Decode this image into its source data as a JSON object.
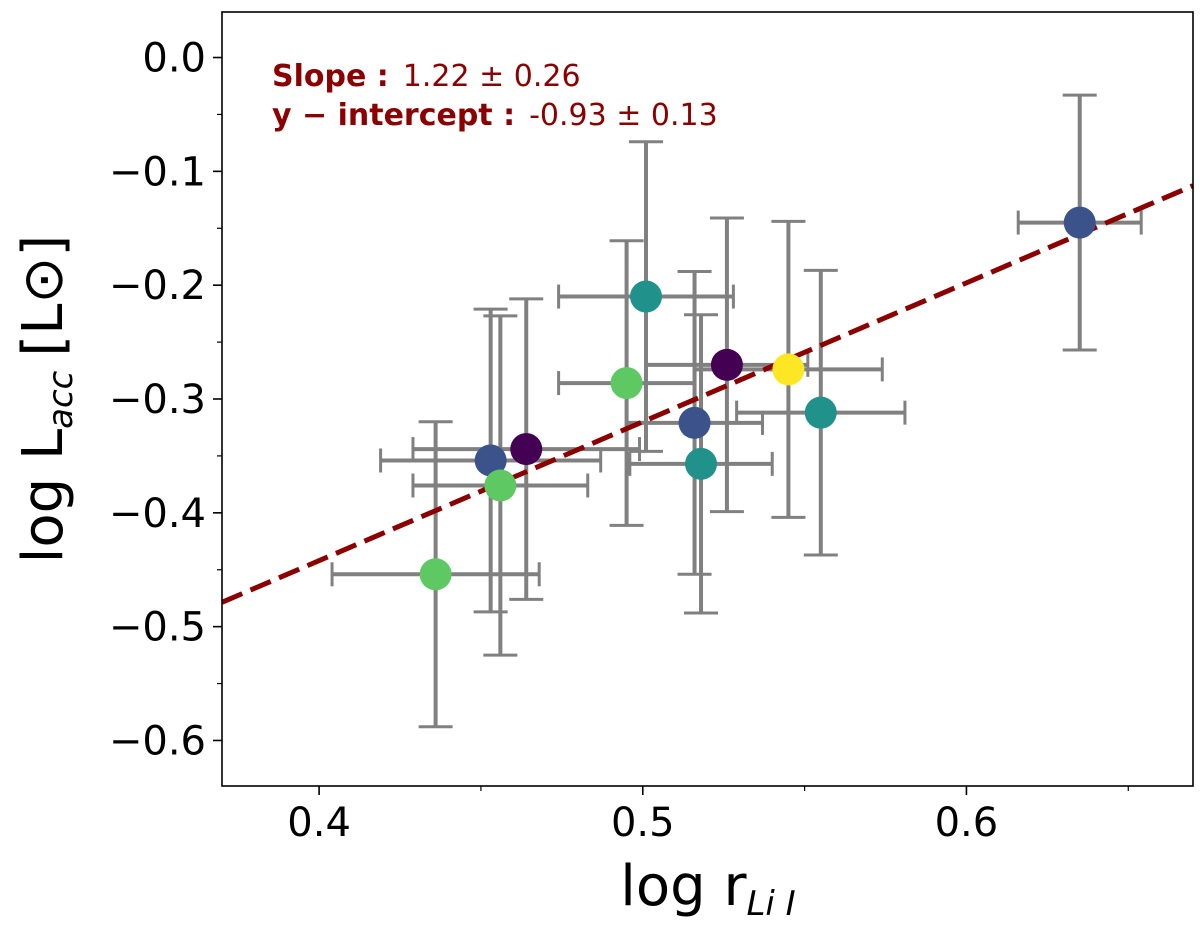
{
  "chart_data": {
    "type": "scatter",
    "xlabel": "log r",
    "xlabel_sub": "Li I",
    "ylabel": "log L",
    "ylabel_sub": "acc",
    "ylabel_unit": "[L⊙]",
    "xlim": [
      0.37,
      0.67
    ],
    "ylim": [
      -0.64,
      0.04
    ],
    "xticks": [
      0.4,
      0.5,
      0.6
    ],
    "xtick_labels": [
      "0.4",
      "0.5",
      "0.6"
    ],
    "yticks": [
      0.0,
      -0.1,
      -0.2,
      -0.3,
      -0.4,
      -0.5,
      -0.6
    ],
    "ytick_labels": [
      "0.0",
      "−0.1",
      "−0.2",
      "−0.3",
      "−0.4",
      "−0.5",
      "−0.6"
    ],
    "grid": false,
    "points": [
      {
        "x": 0.436,
        "y": -0.454,
        "xerr": 0.032,
        "yerr": 0.134,
        "color": "#5ec962"
      },
      {
        "x": 0.453,
        "y": -0.354,
        "xerr": 0.034,
        "yerr": 0.133,
        "color": "#3b528b"
      },
      {
        "x": 0.456,
        "y": -0.376,
        "xerr": 0.027,
        "yerr": 0.149,
        "color": "#5ec962"
      },
      {
        "x": 0.464,
        "y": -0.344,
        "xerr": 0.035,
        "yerr": 0.132,
        "color": "#440154"
      },
      {
        "x": 0.495,
        "y": -0.286,
        "xerr": 0.021,
        "yerr": 0.125,
        "color": "#5ec962"
      },
      {
        "x": 0.501,
        "y": -0.21,
        "xerr": 0.027,
        "yerr": 0.136,
        "color": "#21918c"
      },
      {
        "x": 0.516,
        "y": -0.321,
        "xerr": 0.021,
        "yerr": 0.133,
        "color": "#3b528b"
      },
      {
        "x": 0.518,
        "y": -0.357,
        "xerr": 0.022,
        "yerr": 0.131,
        "color": "#21918c"
      },
      {
        "x": 0.526,
        "y": -0.27,
        "xerr": 0.025,
        "yerr": 0.129,
        "color": "#440154"
      },
      {
        "x": 0.545,
        "y": -0.274,
        "xerr": 0.029,
        "yerr": 0.13,
        "color": "#fde725"
      },
      {
        "x": 0.555,
        "y": -0.312,
        "xerr": 0.026,
        "yerr": 0.125,
        "color": "#21918c"
      },
      {
        "x": 0.635,
        "y": -0.145,
        "xerr": 0.019,
        "yerr": 0.112,
        "color": "#3b528b"
      }
    ],
    "fit": {
      "slope": 1.22,
      "intercept": -0.93,
      "color": "#8b0000",
      "style": "dashed"
    },
    "annotations": {
      "slope_key": "Slope :",
      "slope_value": "1.22 ± 0.26",
      "intercept_key": "y − intercept :",
      "intercept_value": "-0.93 ± 0.13",
      "color": "#8b0000"
    },
    "errorbar_color": "#808080"
  }
}
